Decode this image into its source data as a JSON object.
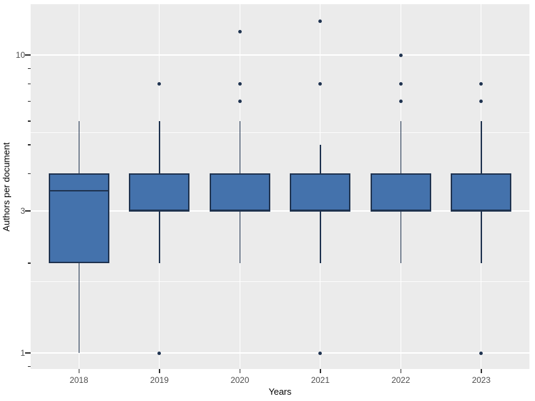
{
  "chart_data": {
    "type": "boxplot",
    "title": "",
    "xlabel": "Years",
    "ylabel": "Authors per document",
    "y_scale": "log10",
    "ylim": [
      0.884,
      14.8
    ],
    "grid": true,
    "legend": "none",
    "categories": [
      "2018",
      "2019",
      "2020",
      "2021",
      "2022",
      "2023"
    ],
    "y_major_ticks": [
      1,
      3,
      10
    ],
    "y_minor_ticks": [
      0.9,
      2,
      4,
      5,
      6,
      7,
      8,
      9
    ],
    "y_minor_gridlines": [
      1.732,
      5.477
    ],
    "series": [
      {
        "year": "2018",
        "whisker_low": 1,
        "q1": 2,
        "median": 3.5,
        "q3": 4,
        "whisker_high": 6,
        "outliers": []
      },
      {
        "year": "2019",
        "whisker_low": 2,
        "q1": 3,
        "median": 3,
        "q3": 4,
        "whisker_high": 6,
        "outliers": [
          8,
          1
        ]
      },
      {
        "year": "2020",
        "whisker_low": 2,
        "q1": 3,
        "median": 3,
        "q3": 4,
        "whisker_high": 6,
        "outliers": [
          12,
          8,
          7
        ]
      },
      {
        "year": "2021",
        "whisker_low": 2,
        "q1": 3,
        "median": 3,
        "q3": 4,
        "whisker_high": 5,
        "outliers": [
          13,
          8,
          1
        ]
      },
      {
        "year": "2022",
        "whisker_low": 2,
        "q1": 3,
        "median": 3,
        "q3": 4,
        "whisker_high": 6,
        "outliers": [
          10,
          8,
          7
        ]
      },
      {
        "year": "2023",
        "whisker_low": 2,
        "q1": 3,
        "median": 3,
        "q3": 4,
        "whisker_high": 6,
        "outliers": [
          8,
          7,
          1
        ]
      }
    ],
    "colors": {
      "panel_bg": "#EBEBEB",
      "figure_bg": "#FFFFFF",
      "grid": "#FFFFFF",
      "box_fill": "#4472AC",
      "box_stroke": "#1F3350",
      "axis_text": "#4D4D4D",
      "axis_title": "#000000",
      "tick_mark": "#333333"
    }
  }
}
